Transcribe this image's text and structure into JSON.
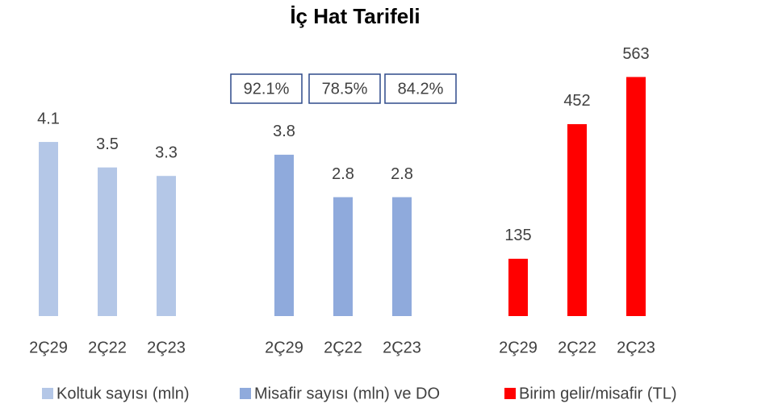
{
  "title": "İç Hat Tarifeli",
  "chart_data": [
    {
      "type": "bar",
      "categories": [
        "2Ç29",
        "2Ç22",
        "2Ç23"
      ],
      "ylim": [
        0,
        6
      ],
      "series": [
        {
          "name": "Koltuk sayısı (mln)",
          "color": "#b4c7e7",
          "values": [
            4.1,
            3.5,
            3.3
          ]
        }
      ]
    },
    {
      "type": "bar",
      "categories": [
        "2Ç29",
        "2Ç22",
        "2Ç23"
      ],
      "ylim": [
        0,
        6
      ],
      "annotations": [
        "92.1%",
        "78.5%",
        "84.2%"
      ],
      "series": [
        {
          "name": "Misafir sayısı (mln) ve DO",
          "color": "#8faadc",
          "values": [
            3.8,
            2.8,
            2.8
          ]
        }
      ]
    },
    {
      "type": "bar",
      "categories": [
        "2Ç29",
        "2Ç22",
        "2Ç23"
      ],
      "ylim": [
        0,
        600
      ],
      "series": [
        {
          "name": "Birim gelir/misafir (TL)",
          "color": "#ff0000",
          "values": [
            135,
            452,
            563
          ]
        }
      ]
    }
  ]
}
